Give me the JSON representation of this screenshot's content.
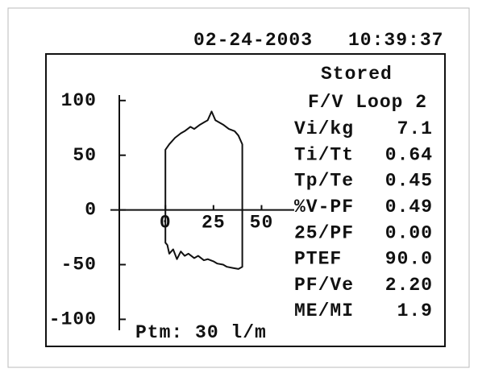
{
  "header": {
    "date": "02-24-2003",
    "time": "10:39:37"
  },
  "panel": {
    "status": "Stored",
    "title": "F/V Loop 2",
    "params": [
      {
        "label": "Vi/kg",
        "value": "7.1"
      },
      {
        "label": "Ti/Tt",
        "value": "0.64"
      },
      {
        "label": "Tp/Te",
        "value": "0.45"
      },
      {
        "label": "%V-PF",
        "value": "0.49"
      },
      {
        "label": "25/PF",
        "value": "0.00"
      },
      {
        "label": "PTEF",
        "value": "90.0"
      },
      {
        "label": "PF/Ve",
        "value": "2.20"
      },
      {
        "label": "ME/MI",
        "value": "1.9"
      }
    ]
  },
  "footer": {
    "ptm": "Ptm: 30 l/m"
  },
  "chart_data": {
    "type": "line",
    "color": "#111111",
    "x": [
      0,
      0,
      2,
      5,
      8,
      10,
      13,
      15,
      18,
      20,
      22,
      24,
      26,
      30,
      33,
      36,
      38,
      40,
      40,
      40,
      38,
      35,
      32,
      30,
      27,
      25,
      22,
      20,
      17,
      15,
      12,
      10,
      8,
      6,
      4,
      2,
      1,
      0,
      0
    ],
    "values": [
      0,
      55,
      60,
      66,
      70,
      72,
      76,
      74,
      78,
      80,
      82,
      90,
      82,
      78,
      74,
      72,
      68,
      60,
      0,
      -52,
      -54,
      -53,
      -52,
      -50,
      -49,
      -47,
      -45,
      -46,
      -42,
      -44,
      -40,
      -42,
      -38,
      -45,
      -36,
      -40,
      -32,
      -30,
      0
    ],
    "xlim": [
      -24,
      67
    ],
    "ylim": [
      -110,
      105
    ],
    "xticks": [
      0,
      25,
      50
    ],
    "yticks": [
      100,
      50,
      0,
      -50,
      -100
    ]
  }
}
